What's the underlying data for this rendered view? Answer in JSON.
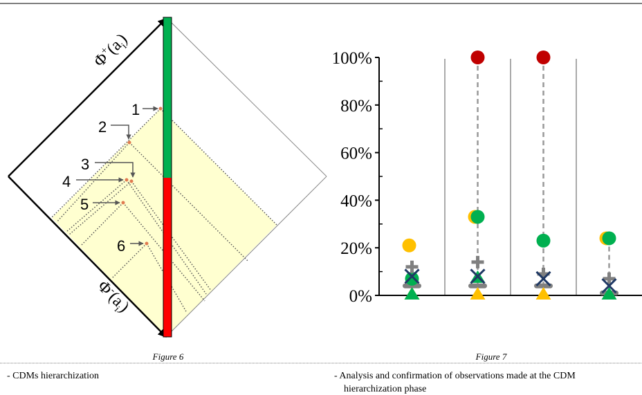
{
  "figure6": {
    "caption": "Figure 6",
    "phi_plus": {
      "symbol": "Φ",
      "sign": "+",
      "open": "(a",
      "sub": "i",
      "close": ")"
    },
    "phi_minus": {
      "symbol": "Φ",
      "sign": "-",
      "open": "(a",
      "sub": "i",
      "close": ")"
    },
    "point_labels": [
      "1",
      "2",
      "3",
      "4",
      "5",
      "6"
    ]
  },
  "figure7": {
    "caption": "Figure 7",
    "chart_data": {
      "type": "scatter",
      "categories": [
        null,
        null,
        null,
        null
      ],
      "ylim": [
        0,
        100
      ],
      "yticks": [
        {
          "value": 0,
          "label": "0%"
        },
        {
          "value": 20,
          "label": "20%"
        },
        {
          "value": 40,
          "label": "40%"
        },
        {
          "value": 60,
          "label": "60%"
        },
        {
          "value": 80,
          "label": "80%"
        },
        {
          "value": 100,
          "label": "100%"
        }
      ],
      "minor_yticks": [
        10,
        30,
        50,
        70,
        90
      ],
      "range_lines": [
        false,
        true,
        true,
        true
      ],
      "series": [
        {
          "marker": "dash",
          "color": "#808080",
          "values": [
            4,
            4,
            4,
            1
          ]
        },
        {
          "marker": "triangle",
          "color": "#ffc000",
          "values": [
            0,
            0,
            0,
            null
          ]
        },
        {
          "marker": "triangle",
          "color": "#00b050",
          "values": [
            0,
            7,
            null,
            0
          ]
        },
        {
          "marker": "circle",
          "color": "#ffc000",
          "values": [
            21,
            33,
            null,
            24
          ]
        },
        {
          "marker": "circle",
          "color": "#00b050",
          "values": [
            7,
            33,
            23,
            24
          ]
        },
        {
          "marker": "circle",
          "color": "#c00000",
          "values": [
            null,
            100,
            100,
            null
          ]
        },
        {
          "marker": "plus",
          "color": "#808080",
          "values": [
            12,
            14,
            9,
            7
          ]
        },
        {
          "marker": "x",
          "color": "#1f3864",
          "values": [
            8,
            8,
            7,
            4
          ]
        }
      ]
    }
  },
  "bullets": {
    "left": "- CDMs hierarchization",
    "right_line1": "- Analysis and confirmation of observations made at the CDM",
    "right_line2": "hierarchization phase"
  }
}
